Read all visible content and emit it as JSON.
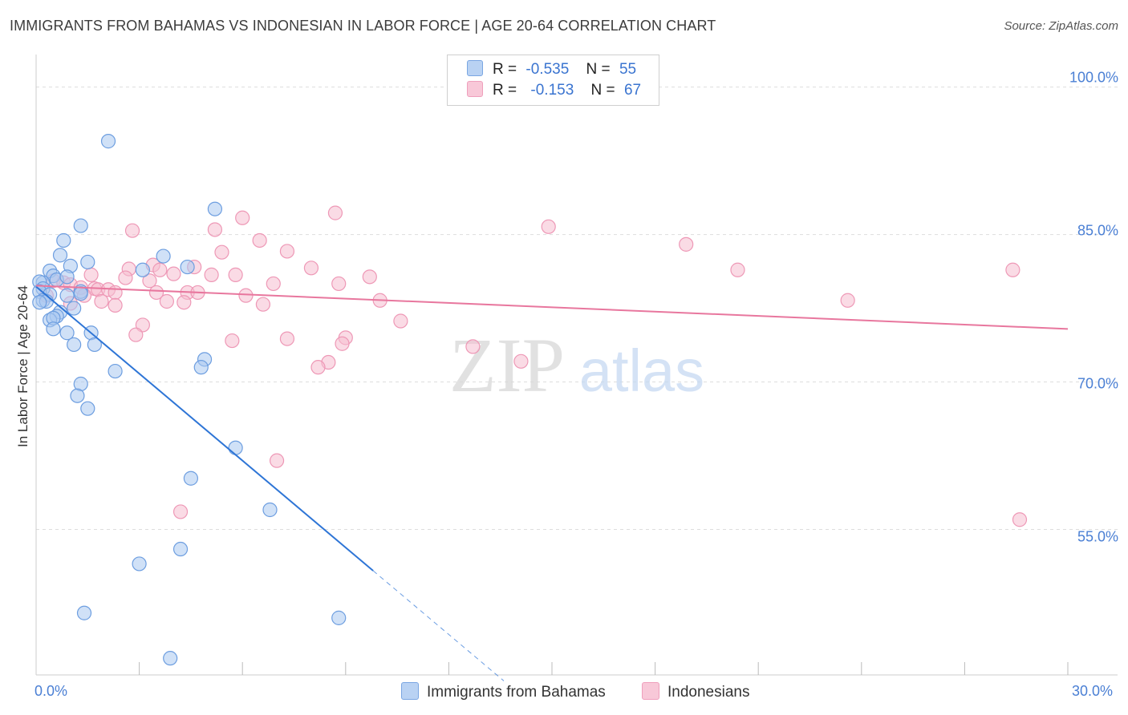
{
  "title": "IMMIGRANTS FROM BAHAMAS VS INDONESIAN IN LABOR FORCE | AGE 20-64 CORRELATION CHART",
  "source": "Source: ZipAtlas.com",
  "watermark": {
    "zip": "ZIP",
    "atlas": "atlas"
  },
  "colors": {
    "blue_fill": "#a9c8f0",
    "blue_stroke": "#6d9ee0",
    "blue_line": "#2e75d6",
    "pink_fill": "#f6bed0",
    "pink_stroke": "#ee98b6",
    "pink_line": "#e8779e",
    "grid": "#dddddd",
    "tick_text": "#4a7fd4"
  },
  "legend": {
    "rows": [
      {
        "r_label": "R =",
        "r_value": "-0.535",
        "n_label": "N =",
        "n_value": "55"
      },
      {
        "r_label": "R =",
        "r_value": "-0.153",
        "n_label": "N =",
        "n_value": "67"
      }
    ]
  },
  "bottom_legend": {
    "blue": "Immigrants from Bahamas",
    "pink": "Indonesians"
  },
  "chart_data": {
    "type": "scatter",
    "title": "IMMIGRANTS FROM BAHAMAS VS INDONESIAN IN LABOR FORCE | AGE 20-64 CORRELATION CHART",
    "xlabel": "",
    "ylabel": "In Labor Force | Age 20-64",
    "xlim": [
      0,
      30
    ],
    "ylim": [
      40.2,
      102.5
    ],
    "x_tick_labels": [
      "0.0%",
      "30.0%"
    ],
    "y_ticks": [
      55,
      70,
      85,
      100
    ],
    "y_tick_labels": [
      "55.0%",
      "70.0%",
      "85.0%",
      "100.0%"
    ],
    "series": [
      {
        "name": "Immigrants from Bahamas",
        "trend": {
          "x0": 0.0,
          "y0": 79.7,
          "x1": 9.8,
          "y1": 50.8,
          "dash_to_x": 13.6
        },
        "points": [
          [
            2.1,
            94.5
          ],
          [
            1.3,
            85.9
          ],
          [
            0.8,
            84.4
          ],
          [
            5.2,
            87.6
          ],
          [
            0.7,
            82.9
          ],
          [
            1.0,
            81.8
          ],
          [
            1.5,
            82.2
          ],
          [
            3.1,
            81.4
          ],
          [
            3.7,
            82.8
          ],
          [
            4.4,
            81.7
          ],
          [
            0.4,
            81.3
          ],
          [
            0.5,
            80.8
          ],
          [
            0.2,
            80.1
          ],
          [
            0.1,
            80.2
          ],
          [
            0.6,
            80.4
          ],
          [
            0.9,
            80.7
          ],
          [
            0.2,
            79.5
          ],
          [
            0.1,
            79.2
          ],
          [
            0.4,
            78.9
          ],
          [
            0.9,
            78.8
          ],
          [
            1.3,
            79.2
          ],
          [
            1.3,
            79.0
          ],
          [
            0.2,
            78.3
          ],
          [
            0.3,
            78.2
          ],
          [
            0.1,
            78.1
          ],
          [
            1.1,
            77.5
          ],
          [
            0.7,
            77.1
          ],
          [
            0.6,
            76.7
          ],
          [
            0.4,
            76.3
          ],
          [
            0.5,
            76.5
          ],
          [
            0.5,
            75.4
          ],
          [
            0.9,
            75.0
          ],
          [
            1.6,
            75.0
          ],
          [
            1.1,
            73.8
          ],
          [
            1.7,
            73.8
          ],
          [
            4.9,
            72.3
          ],
          [
            4.8,
            71.5
          ],
          [
            2.3,
            71.1
          ],
          [
            1.3,
            69.8
          ],
          [
            1.2,
            68.6
          ],
          [
            1.5,
            67.3
          ],
          [
            5.8,
            63.3
          ],
          [
            4.5,
            60.2
          ],
          [
            6.8,
            57.0
          ],
          [
            4.2,
            53.0
          ],
          [
            3.0,
            51.5
          ],
          [
            1.4,
            46.5
          ],
          [
            8.8,
            46.0
          ],
          [
            3.9,
            41.9
          ]
        ]
      },
      {
        "name": "Indonesians",
        "trend": {
          "x0": 0.0,
          "y0": 79.8,
          "x1": 30.0,
          "y1": 75.4
        },
        "points": [
          [
            8.7,
            87.2
          ],
          [
            6.0,
            86.7
          ],
          [
            14.9,
            85.8
          ],
          [
            2.8,
            85.4
          ],
          [
            5.2,
            85.5
          ],
          [
            6.5,
            84.4
          ],
          [
            18.9,
            84.0
          ],
          [
            5.4,
            83.2
          ],
          [
            7.3,
            83.3
          ],
          [
            3.4,
            81.9
          ],
          [
            4.6,
            81.7
          ],
          [
            2.7,
            81.5
          ],
          [
            3.6,
            81.4
          ],
          [
            8.0,
            81.6
          ],
          [
            20.4,
            81.4
          ],
          [
            28.4,
            81.4
          ],
          [
            1.6,
            80.9
          ],
          [
            5.1,
            80.9
          ],
          [
            5.8,
            80.9
          ],
          [
            2.6,
            80.6
          ],
          [
            9.7,
            80.7
          ],
          [
            3.3,
            80.3
          ],
          [
            4.0,
            81.0
          ],
          [
            6.9,
            80.0
          ],
          [
            8.8,
            80.0
          ],
          [
            0.5,
            80.3
          ],
          [
            0.8,
            80.1
          ],
          [
            1.0,
            79.9
          ],
          [
            1.3,
            79.6
          ],
          [
            1.7,
            79.5
          ],
          [
            1.8,
            79.4
          ],
          [
            2.1,
            79.4
          ],
          [
            2.3,
            79.1
          ],
          [
            4.4,
            79.1
          ],
          [
            4.7,
            79.1
          ],
          [
            0.3,
            78.8
          ],
          [
            1.4,
            78.8
          ],
          [
            6.1,
            78.8
          ],
          [
            3.5,
            79.1
          ],
          [
            1.0,
            78.0
          ],
          [
            1.9,
            78.2
          ],
          [
            2.3,
            77.8
          ],
          [
            3.8,
            78.2
          ],
          [
            4.3,
            78.1
          ],
          [
            6.6,
            77.9
          ],
          [
            10.0,
            78.3
          ],
          [
            23.6,
            78.3
          ],
          [
            10.6,
            76.2
          ],
          [
            3.1,
            75.8
          ],
          [
            2.9,
            74.8
          ],
          [
            7.3,
            74.4
          ],
          [
            9.0,
            74.5
          ],
          [
            5.7,
            74.2
          ],
          [
            8.9,
            73.9
          ],
          [
            12.7,
            73.6
          ],
          [
            8.5,
            72.0
          ],
          [
            8.2,
            71.5
          ],
          [
            14.1,
            72.1
          ],
          [
            7.0,
            62.0
          ],
          [
            4.2,
            56.8
          ],
          [
            28.6,
            56.0
          ]
        ]
      }
    ]
  }
}
